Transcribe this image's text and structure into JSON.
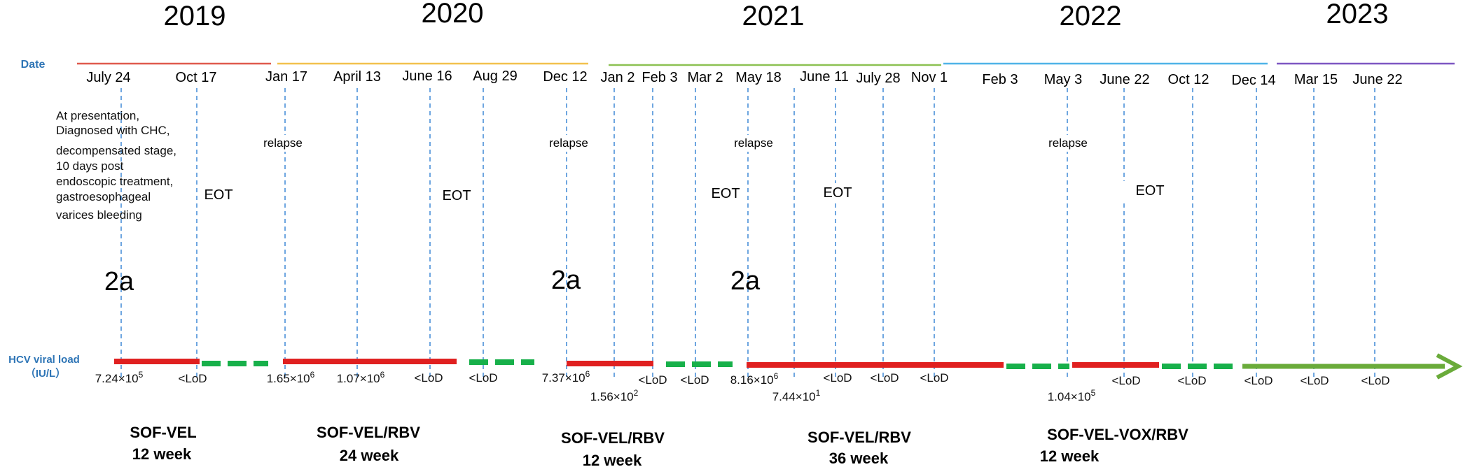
{
  "years": [
    {
      "label": "2019"
    },
    {
      "label": "2020"
    },
    {
      "label": "2021"
    },
    {
      "label": "2022"
    },
    {
      "label": "2023"
    }
  ],
  "year_bar_colors": [
    "#e05a4e",
    "#f2c14e",
    "#8cc152",
    "#4fb3e8",
    "#7e57c2"
  ],
  "date_axis_label": "Date",
  "viral_load_axis_label": [
    "HCV viral load",
    "（IU/L）"
  ],
  "dates": [
    {
      "label": "July 24"
    },
    {
      "label": "Oct 17"
    },
    {
      "label": "Jan 17"
    },
    {
      "label": "April 13"
    },
    {
      "label": "June 16"
    },
    {
      "label": "Aug  29"
    },
    {
      "label": "Dec 12"
    },
    {
      "label": "Jan 2"
    },
    {
      "label": "Feb 3"
    },
    {
      "label": "Mar 2"
    },
    {
      "label": "May 18"
    },
    {
      "label": "June 11"
    },
    {
      "label": "July 28"
    },
    {
      "label": "Nov 1"
    },
    {
      "label": "Feb  3"
    },
    {
      "label": "May  3"
    },
    {
      "label": "June   22"
    },
    {
      "label": "Oct 12"
    },
    {
      "label": "Dec 14"
    },
    {
      "label": "Mar 15"
    },
    {
      "label": "June 22"
    }
  ],
  "presentation_note": [
    "At presentation,",
    "Diagnosed with CHC,",
    "decompensated stage,",
    "10 days post",
    "endoscopic treatment,",
    "gastroesophageal",
    "varices bleeding"
  ],
  "events": [
    {
      "label": "relapse"
    },
    {
      "label": "relapse"
    },
    {
      "label": "relapse"
    },
    {
      "label": "relapse"
    },
    {
      "label": "EOT"
    },
    {
      "label": "EOT"
    },
    {
      "label": "EOT"
    },
    {
      "label": "EOT"
    },
    {
      "label": "EOT"
    }
  ],
  "genotypes": [
    {
      "label": "2a"
    },
    {
      "label": "2a"
    },
    {
      "label": "2a"
    }
  ],
  "viral_loads": [
    {
      "base": "7.24×10",
      "exp": "5"
    },
    {
      "base": "<LoD",
      "exp": ""
    },
    {
      "base": "1.65×10",
      "exp": "6"
    },
    {
      "base": "1.07×10",
      "exp": "6"
    },
    {
      "base": "<LoD",
      "exp": ""
    },
    {
      "base": "<LoD",
      "exp": ""
    },
    {
      "base": "7.37×10",
      "exp": "6"
    },
    {
      "base": "1.56×10",
      "exp": "2"
    },
    {
      "base": "<LoD",
      "exp": ""
    },
    {
      "base": "<LoD",
      "exp": ""
    },
    {
      "base": "8.16×10",
      "exp": "6"
    },
    {
      "base": "7.44×10",
      "exp": "1"
    },
    {
      "base": "<LoD",
      "exp": ""
    },
    {
      "base": "<LoD",
      "exp": ""
    },
    {
      "base": "<LoD",
      "exp": ""
    },
    {
      "base": "1.04×10",
      "exp": "5"
    },
    {
      "base": "<LoD",
      "exp": ""
    },
    {
      "base": "<LoD",
      "exp": ""
    },
    {
      "base": "<LoD",
      "exp": ""
    },
    {
      "base": "<LoD",
      "exp": ""
    },
    {
      "base": "<LoD",
      "exp": ""
    }
  ],
  "regimens": [
    {
      "name": "SOF-VEL",
      "duration": "12 week"
    },
    {
      "name": "SOF-VEL/RBV",
      "duration": "24 week"
    },
    {
      "name": "SOF-VEL/RBV",
      "duration": "12 week"
    },
    {
      "name": "SOF-VEL/RBV",
      "duration": "36 week"
    },
    {
      "name": "SOF-VEL-VOX/RBV",
      "duration": "12 week"
    }
  ],
  "colors": {
    "detectable": "#e02020",
    "undetectable": "#17b04a",
    "followup_arrow": "#6aab3a",
    "dashed_line": "#4a90d9",
    "axis_label": "#2e75b6"
  },
  "legend_encoding": {
    "detectable": "solid red bar",
    "undetectable": "dashed green bar"
  }
}
